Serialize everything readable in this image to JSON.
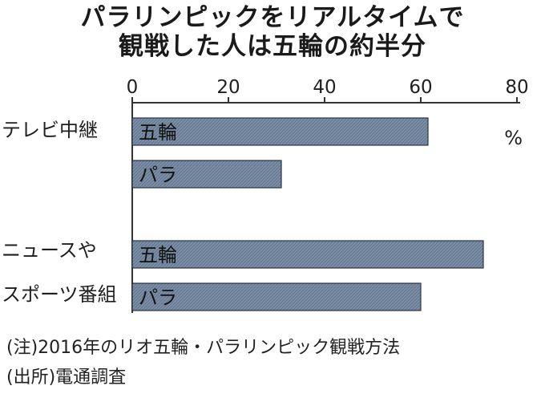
{
  "title_lines": [
    "パラリンピックをリアルタイムで",
    "観戦した人は五輪の約半分"
  ],
  "notes": [
    "(注)2016年のリオ五輪・パラリンピック観戦方法",
    "(出所)電通調査"
  ],
  "unit": "%",
  "colors": {
    "bar_fill": "#7b8ea6",
    "bar_hatch": "#5d6f86",
    "bar_stroke": "#2a3442",
    "axis": "#333333",
    "text": "#1f1f1f"
  },
  "chart_data": {
    "type": "bar",
    "orientation": "horizontal",
    "xlim": [
      0,
      80
    ],
    "x_ticks": [
      0,
      20,
      40,
      60,
      80
    ],
    "x_tick_labels": [
      "0",
      "20",
      "40",
      "60",
      "80"
    ],
    "categories": [
      {
        "label_lines": [
          "テレビ中継"
        ]
      },
      {
        "label_lines": [
          "ニュースや",
          "スポーツ番組"
        ]
      }
    ],
    "bars": [
      {
        "category": 0,
        "label": "五輪",
        "value": 61.5
      },
      {
        "category": 0,
        "label": "パラ",
        "value": 31
      },
      {
        "category": 1,
        "label": "五輪",
        "value": 73
      },
      {
        "category": 1,
        "label": "パラ",
        "value": 60
      }
    ]
  }
}
